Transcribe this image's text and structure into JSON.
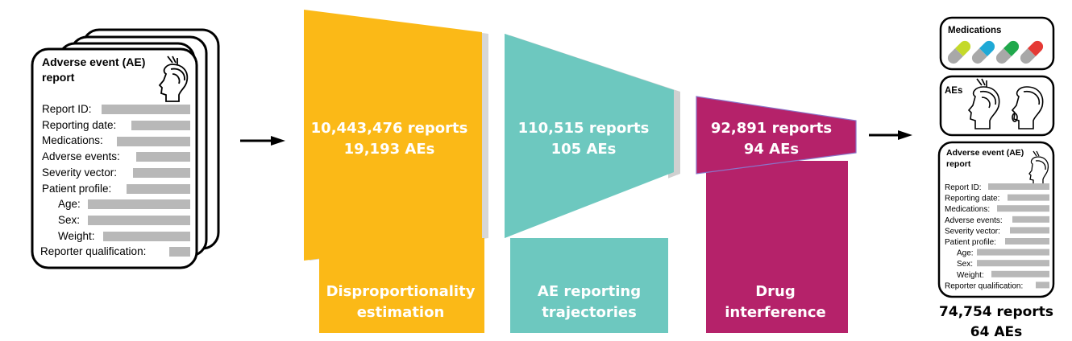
{
  "input_report": {
    "title_line1": "Adverse event (AE)",
    "title_line2": "report",
    "fields": [
      "Report ID:",
      "Reporting date:",
      "Medications:",
      "Adverse events:",
      "Severity vector:",
      "Patient profile:",
      "Age:",
      "Sex:",
      "Weight:",
      "Reporter qualification:"
    ]
  },
  "stages": [
    {
      "count_line1": "10,443,476 reports",
      "count_line2": "19,193 AEs",
      "label_line1": "Disproportionality",
      "label_line2": "estimation",
      "color": "#fbb917"
    },
    {
      "count_line1": "110,515 reports",
      "count_line2": "105 AEs",
      "label_line1": "AE reporting",
      "label_line2": "trajectories",
      "color": "#6dc8bf"
    },
    {
      "count_line1": "92,891 reports",
      "count_line2": "94 AEs",
      "label_line1": "Drug",
      "label_line2": "interference",
      "color": "#b5226a"
    }
  ],
  "output": {
    "medications_label": "Medications",
    "aes_label": "AEs",
    "pill_colors": [
      "#c4d92a",
      "#1fa9d6",
      "#20a84c",
      "#e53935"
    ],
    "report_title_line1": "Adverse event (AE)",
    "report_title_line2": "report",
    "fields": [
      "Report ID:",
      "Reporting date:",
      "Medications:",
      "Adverse events:",
      "Severity vector:",
      "Patient profile:",
      "Age:",
      "Sex:",
      "Weight:",
      "Reporter qualification:"
    ],
    "final_line1": "74,754 reports",
    "final_line2": "64 AEs"
  }
}
